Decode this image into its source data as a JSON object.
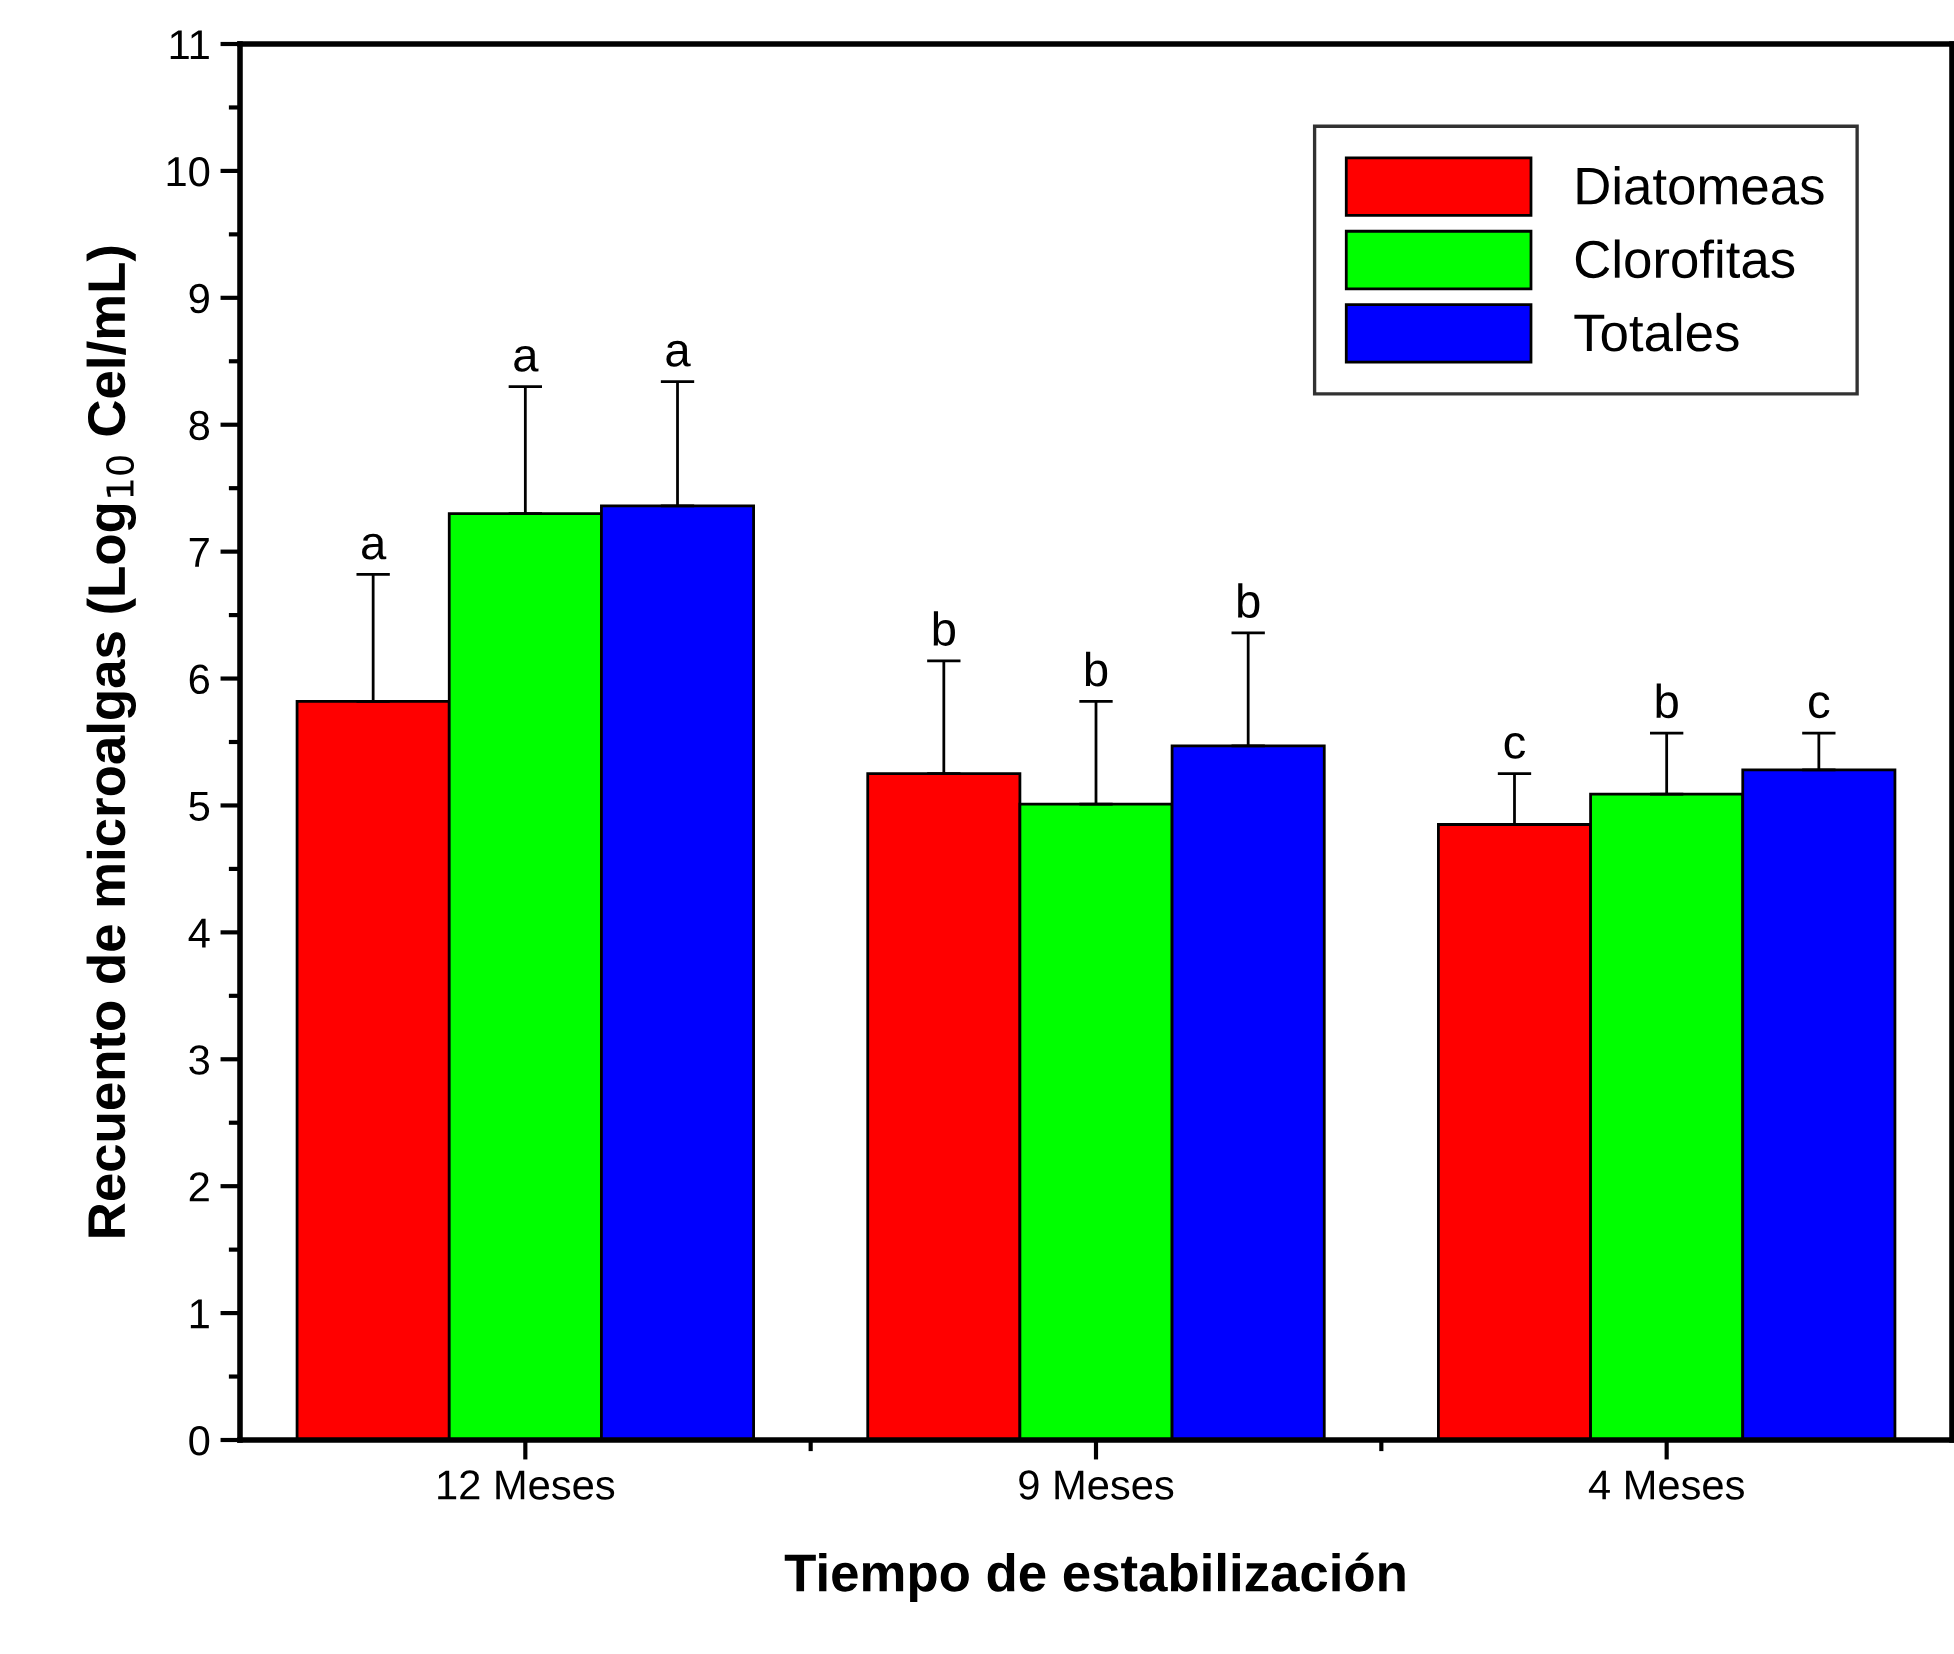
{
  "chart_data": {
    "type": "bar",
    "xlabel": "Tiempo de estabilización",
    "ylabel": "Recuento de microalgas (Log$_{10}$ Cel/mL)",
    "categories": [
      "12 Meses",
      "9 Meses",
      "4 Meses"
    ],
    "series": [
      {
        "name": "Diatomeas",
        "color": "#ff0000",
        "values": [
          5.82,
          5.25,
          4.85
        ],
        "errors": [
          1.0,
          0.89,
          0.4
        ],
        "value_labels": [
          "a",
          "b",
          "c"
        ]
      },
      {
        "name": "Clorofitas",
        "color": "#00ff00",
        "values": [
          7.3,
          5.01,
          5.09
        ],
        "errors": [
          1.0,
          0.81,
          0.48
        ],
        "value_labels": [
          "a",
          "b",
          "b"
        ]
      },
      {
        "name": "Totales",
        "color": "#0000ff",
        "values": [
          7.36,
          5.47,
          5.28
        ],
        "errors": [
          0.98,
          0.89,
          0.29
        ],
        "value_labels": [
          "a",
          "b",
          "c"
        ]
      }
    ],
    "ylim": [
      0,
      11
    ],
    "yticks": [
      0,
      1,
      2,
      3,
      4,
      5,
      6,
      7,
      8,
      9,
      10,
      11
    ],
    "grid": false,
    "legend": "top right"
  }
}
